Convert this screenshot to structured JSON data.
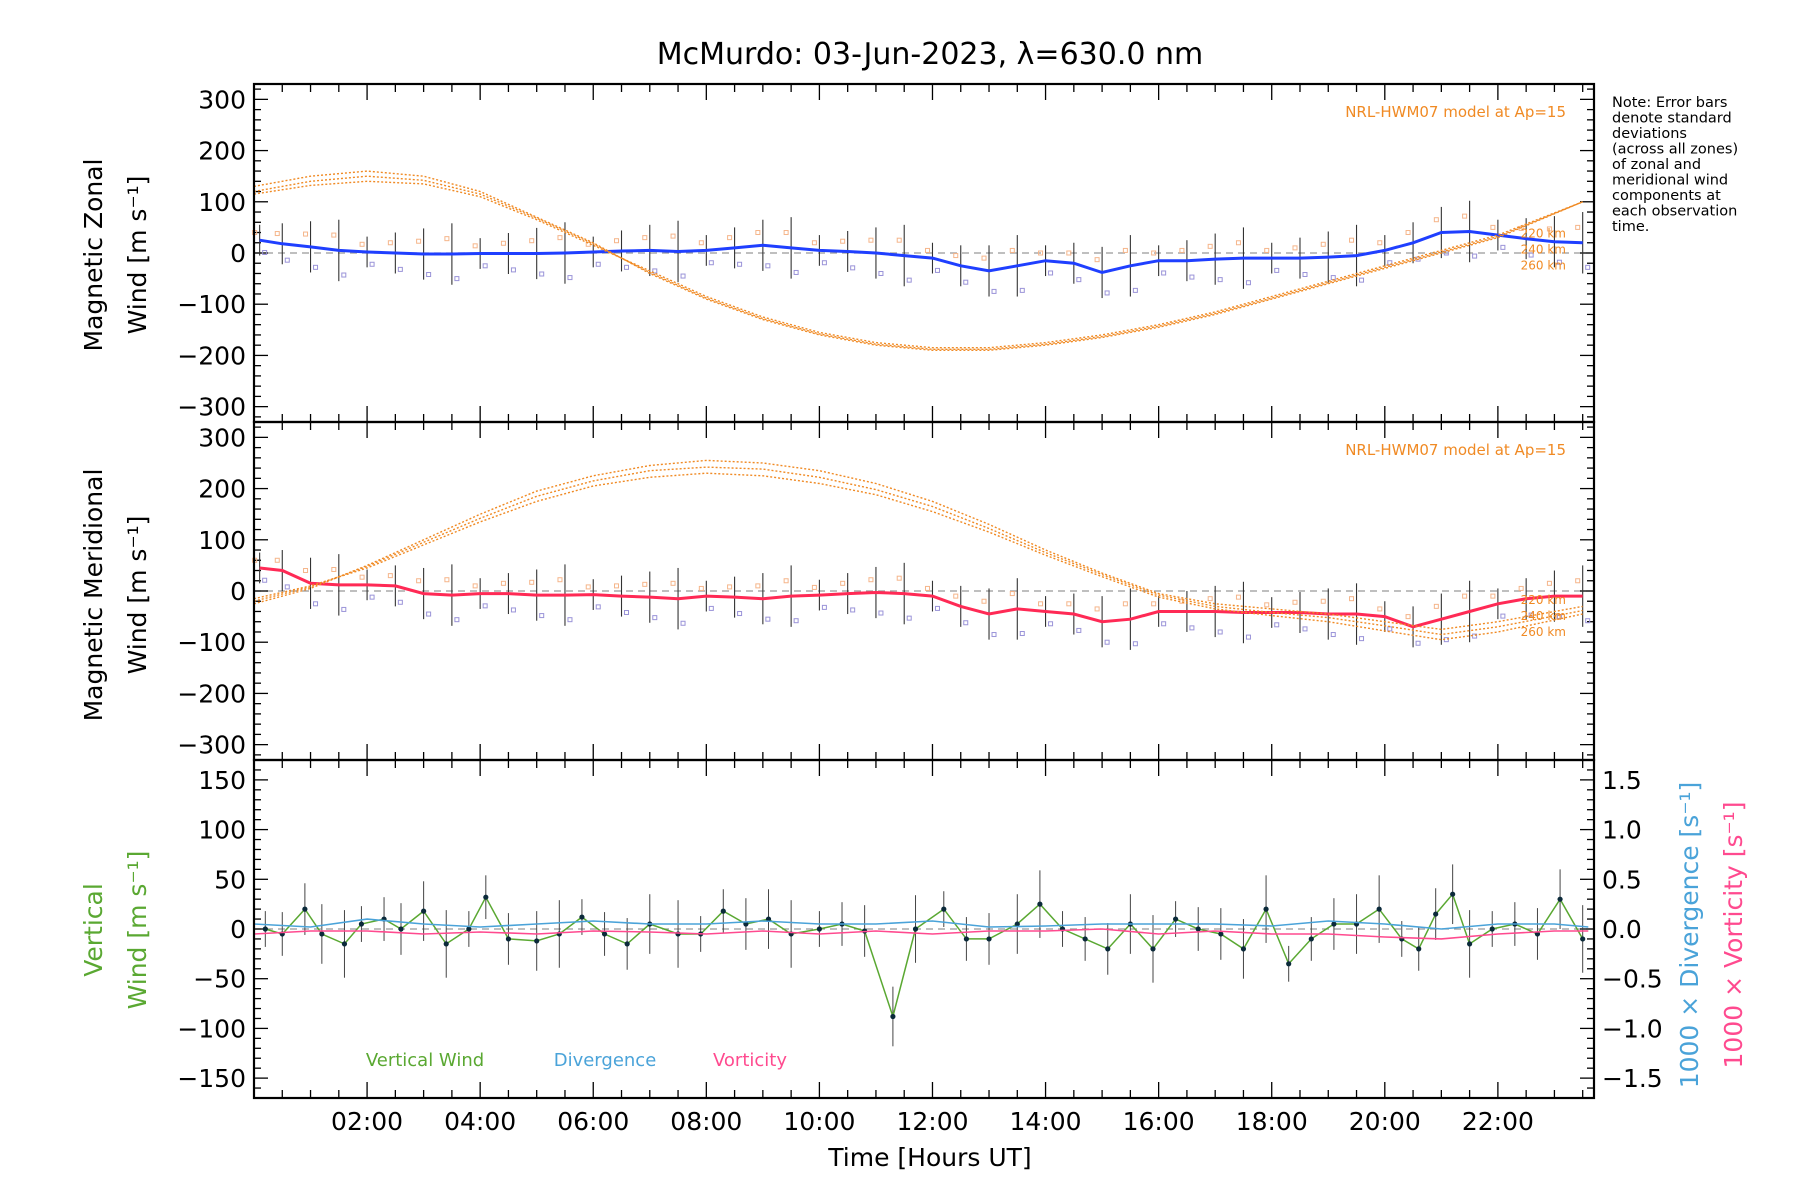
{
  "chart_data": [
    {
      "type": "line",
      "title": "McMurdo: 03-Jun-2023, λ=630.0 nm",
      "ylabel_line1": "Magnetic Zonal",
      "ylabel_line2": "Wind [m s⁻¹]",
      "ylim": [
        -330,
        330
      ],
      "yticks": [
        -300,
        -200,
        -100,
        0,
        100,
        200,
        300
      ],
      "model_label": "NRL-HWM07 model at Ap=15",
      "model_altitudes": [
        "220 km",
        "240 km",
        "260 km"
      ],
      "series": [
        {
          "name": "Zonal wind",
          "color": "#1f3fff",
          "x": [
            0.1,
            0.5,
            1.0,
            1.5,
            2.0,
            2.5,
            3.0,
            3.5,
            4.0,
            4.5,
            5.0,
            5.5,
            6.0,
            6.5,
            7.0,
            7.5,
            8.0,
            8.5,
            9.0,
            9.5,
            10.0,
            10.5,
            11.0,
            11.5,
            12.0,
            12.5,
            13.0,
            13.5,
            14.0,
            14.5,
            15.0,
            15.5,
            16.0,
            16.5,
            17.0,
            17.5,
            18.0,
            18.5,
            19.0,
            19.5,
            20.0,
            20.5,
            21.0,
            21.5,
            22.0,
            22.5,
            23.0,
            23.5
          ],
          "y": [
            25,
            18,
            12,
            5,
            2,
            0,
            -2,
            -2,
            -1,
            -1,
            -1,
            0,
            2,
            4,
            5,
            3,
            5,
            10,
            15,
            10,
            5,
            3,
            0,
            -5,
            -10,
            -25,
            -35,
            -25,
            -15,
            -20,
            -38,
            -25,
            -15,
            -15,
            -12,
            -10,
            -10,
            -10,
            -8,
            -5,
            5,
            20,
            40,
            42,
            35,
            28,
            22,
            20
          ]
        },
        {
          "name": "Model 220 km",
          "color": "#f08a24",
          "x": [
            0,
            1,
            2,
            3,
            4,
            5,
            6,
            7,
            8,
            9,
            10,
            11,
            12,
            13,
            14,
            15,
            16,
            17,
            18,
            19,
            20,
            21,
            22,
            23.5
          ],
          "y": [
            130,
            150,
            160,
            150,
            120,
            70,
            20,
            -40,
            -90,
            -130,
            -160,
            -180,
            -190,
            -190,
            -180,
            -165,
            -145,
            -120,
            -90,
            -60,
            -30,
            0,
            30,
            100
          ]
        },
        {
          "name": "Model 240 km",
          "color": "#f08a24",
          "x": [
            0,
            1,
            2,
            3,
            4,
            5,
            6,
            7,
            8,
            9,
            10,
            11,
            12,
            13,
            14,
            15,
            16,
            17,
            18,
            19,
            20,
            21,
            22,
            23.5
          ],
          "y": [
            120,
            140,
            150,
            142,
            115,
            68,
            18,
            -38,
            -88,
            -128,
            -158,
            -178,
            -188,
            -188,
            -178,
            -163,
            -143,
            -118,
            -88,
            -58,
            -28,
            2,
            32,
            100
          ]
        },
        {
          "name": "Model 260 km",
          "color": "#f08a24",
          "x": [
            0,
            1,
            2,
            3,
            4,
            5,
            6,
            7,
            8,
            9,
            10,
            11,
            12,
            13,
            14,
            15,
            16,
            17,
            18,
            19,
            20,
            21,
            22,
            23.5
          ],
          "y": [
            115,
            132,
            140,
            135,
            110,
            65,
            15,
            -35,
            -85,
            -125,
            -155,
            -175,
            -185,
            -185,
            -175,
            -160,
            -140,
            -115,
            -85,
            -55,
            -25,
            5,
            35,
            100
          ]
        }
      ]
    },
    {
      "type": "line",
      "ylabel_line1": "Magnetic Meridional",
      "ylabel_line2": "Wind [m s⁻¹]",
      "ylim": [
        -330,
        330
      ],
      "yticks": [
        -300,
        -200,
        -100,
        0,
        100,
        200,
        300
      ],
      "model_label": "NRL-HWM07 model at Ap=15",
      "model_altitudes": [
        "220 km",
        "240 km",
        "260 km"
      ],
      "series": [
        {
          "name": "Meridional wind",
          "color": "#ff2a55",
          "x": [
            0.1,
            0.5,
            1.0,
            1.5,
            2.0,
            2.5,
            3.0,
            3.5,
            4.0,
            4.5,
            5.0,
            5.5,
            6.0,
            6.5,
            7.0,
            7.5,
            8.0,
            8.5,
            9.0,
            9.5,
            10.0,
            10.5,
            11.0,
            11.5,
            12.0,
            12.5,
            13.0,
            13.5,
            14.0,
            14.5,
            15.0,
            15.5,
            16.0,
            16.5,
            17.0,
            17.5,
            18.0,
            18.5,
            19.0,
            19.5,
            20.0,
            20.5,
            21.0,
            21.5,
            22.0,
            22.5,
            23.0,
            23.5
          ],
          "y": [
            45,
            40,
            15,
            12,
            12,
            10,
            -5,
            -8,
            -5,
            -5,
            -8,
            -8,
            -7,
            -10,
            -12,
            -15,
            -10,
            -12,
            -15,
            -10,
            -8,
            -5,
            -3,
            -5,
            -10,
            -30,
            -45,
            -35,
            -40,
            -45,
            -60,
            -55,
            -40,
            -40,
            -40,
            -42,
            -42,
            -42,
            -45,
            -45,
            -50,
            -70,
            -55,
            -40,
            -25,
            -15,
            -10,
            -10
          ]
        },
        {
          "name": "Model 220 km",
          "color": "#f08a24",
          "x": [
            0,
            1,
            2,
            3,
            4,
            5,
            6,
            7,
            8,
            9,
            10,
            11,
            12,
            13,
            14,
            15,
            16,
            17,
            18,
            19,
            20,
            21,
            22,
            23.5
          ],
          "y": [
            -25,
            5,
            50,
            100,
            150,
            195,
            225,
            245,
            255,
            250,
            235,
            210,
            175,
            130,
            80,
            35,
            -5,
            -25,
            -35,
            -45,
            -60,
            -75,
            -60,
            -30
          ]
        },
        {
          "name": "Model 240 km",
          "color": "#f08a24",
          "x": [
            0,
            1,
            2,
            3,
            4,
            5,
            6,
            7,
            8,
            9,
            10,
            11,
            12,
            13,
            14,
            15,
            16,
            17,
            18,
            19,
            20,
            21,
            22,
            23.5
          ],
          "y": [
            -20,
            8,
            48,
            95,
            142,
            185,
            215,
            235,
            242,
            238,
            222,
            198,
            165,
            122,
            75,
            32,
            -8,
            -30,
            -42,
            -52,
            -68,
            -85,
            -70,
            -38
          ]
        },
        {
          "name": "Model 260 km",
          "color": "#f08a24",
          "x": [
            0,
            1,
            2,
            3,
            4,
            5,
            6,
            7,
            8,
            9,
            10,
            11,
            12,
            13,
            14,
            15,
            16,
            17,
            18,
            19,
            20,
            21,
            22,
            23.5
          ],
          "y": [
            -15,
            10,
            45,
            90,
            135,
            175,
            205,
            222,
            230,
            225,
            210,
            188,
            155,
            115,
            70,
            28,
            -12,
            -35,
            -48,
            -60,
            -78,
            -95,
            -80,
            -45
          ]
        }
      ]
    },
    {
      "type": "line",
      "xlabel": "Time [Hours UT]",
      "xticks": [
        "02:00",
        "04:00",
        "06:00",
        "08:00",
        "10:00",
        "12:00",
        "14:00",
        "16:00",
        "18:00",
        "20:00",
        "22:00"
      ],
      "xlim": [
        0,
        23.7
      ],
      "ylabel_line1": "Vertical",
      "ylabel_line2": "Wind [m s⁻¹]",
      "ylim": [
        -170,
        170
      ],
      "yticks": [
        -150,
        -100,
        -50,
        0,
        50,
        100,
        150
      ],
      "y2label_div": "1000 × Divergence [s⁻¹]",
      "y2label_vort": "1000 × Vorticity [s⁻¹]",
      "y2lim": [
        -1.7,
        1.7
      ],
      "y2ticks": [
        -1.5,
        -1.0,
        -0.5,
        0.0,
        0.5,
        1.0,
        1.5
      ],
      "legend": [
        "Vertical Wind",
        "Divergence",
        "Vorticity"
      ],
      "series": [
        {
          "name": "Vertical Wind",
          "color": "#5aa832",
          "x": [
            0.2,
            0.5,
            0.9,
            1.2,
            1.6,
            1.9,
            2.3,
            2.6,
            3.0,
            3.4,
            3.8,
            4.1,
            4.5,
            5.0,
            5.4,
            5.8,
            6.2,
            6.6,
            7.0,
            7.5,
            7.9,
            8.3,
            8.7,
            9.1,
            9.5,
            10.0,
            10.4,
            10.8,
            11.3,
            11.7,
            12.2,
            12.6,
            13.0,
            13.5,
            13.9,
            14.3,
            14.7,
            15.1,
            15.5,
            15.9,
            16.3,
            16.7,
            17.1,
            17.5,
            17.9,
            18.3,
            18.7,
            19.1,
            19.5,
            19.9,
            20.3,
            20.6,
            20.9,
            21.2,
            21.5,
            21.9,
            22.3,
            22.7,
            23.1,
            23.5
          ],
          "y": [
            0,
            -5,
            20,
            -5,
            -15,
            5,
            10,
            0,
            18,
            -15,
            0,
            32,
            -10,
            -12,
            -5,
            12,
            -5,
            -15,
            5,
            -5,
            -5,
            18,
            5,
            10,
            -5,
            0,
            5,
            -2,
            -88,
            0,
            20,
            -10,
            -10,
            5,
            25,
            0,
            -10,
            -20,
            5,
            -20,
            10,
            0,
            -5,
            -20,
            20,
            -35,
            -10,
            5,
            5,
            20,
            -10,
            -20,
            15,
            35,
            -15,
            0,
            5,
            -5,
            30,
            -10
          ]
        },
        {
          "name": "Divergence",
          "color": "#4aa3d9",
          "x": [
            0,
            1,
            2,
            3,
            4,
            5,
            6,
            7,
            8,
            9,
            10,
            11,
            12,
            13,
            14,
            15,
            16,
            17,
            18,
            19,
            20,
            21,
            22,
            23,
            23.6
          ],
          "y": [
            0.05,
            0.02,
            0.1,
            0.05,
            0.02,
            0.05,
            0.08,
            0.05,
            0.05,
            0.08,
            0.05,
            0.05,
            0.08,
            0.02,
            0.03,
            0.05,
            0.05,
            0.05,
            0.03,
            0.08,
            0.05,
            0.0,
            0.05,
            0.05,
            0.02
          ]
        },
        {
          "name": "Vorticity",
          "color": "#ff4a8f",
          "x": [
            0,
            1,
            2,
            3,
            4,
            5,
            6,
            7,
            8,
            9,
            10,
            11,
            12,
            13,
            14,
            15,
            16,
            17,
            18,
            19,
            20,
            21,
            22,
            23,
            23.6
          ],
          "y": [
            -0.05,
            -0.02,
            -0.02,
            -0.05,
            -0.03,
            -0.05,
            -0.02,
            -0.03,
            -0.05,
            -0.02,
            -0.05,
            -0.02,
            -0.05,
            -0.02,
            -0.02,
            0.0,
            -0.05,
            -0.02,
            -0.05,
            -0.05,
            -0.08,
            -0.1,
            -0.05,
            -0.02,
            -0.02
          ]
        }
      ]
    }
  ],
  "note": [
    "Note: Error bars",
    "denote standard",
    "deviations",
    "(across all zones)",
    "of zonal and",
    "meridional wind",
    "components at",
    "each observation",
    "time."
  ]
}
